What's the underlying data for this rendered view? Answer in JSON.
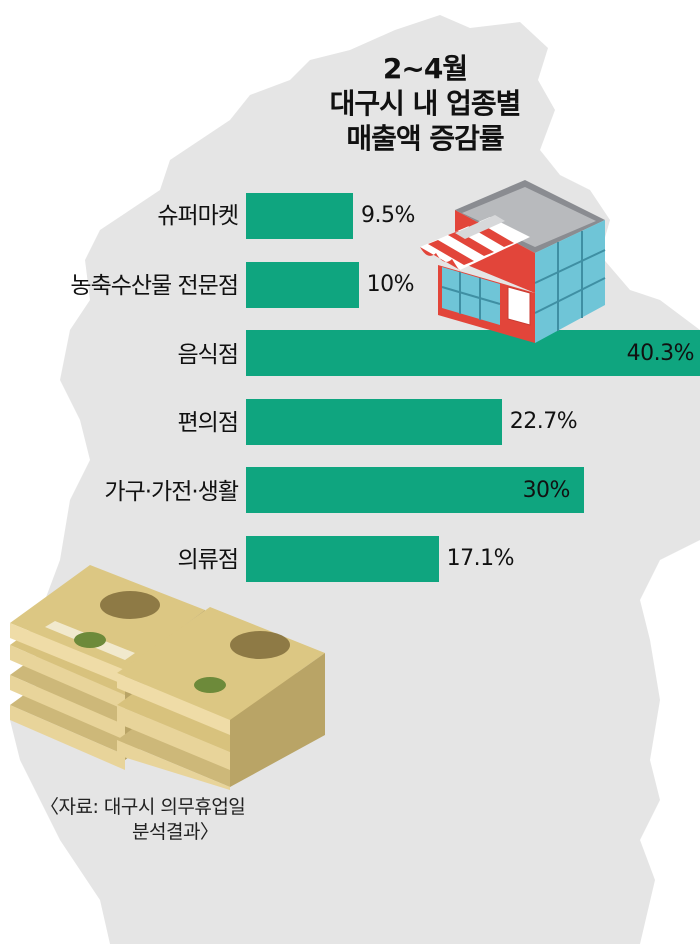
{
  "chart_data": {
    "type": "bar",
    "orientation": "horizontal",
    "title": [
      "2~4월",
      "대구시 내 업종별",
      "매출액 증감률"
    ],
    "categories": [
      "슈퍼마켓",
      "농축수산물 전문점",
      "음식점",
      "편의점",
      "가구·가전·생활",
      "의류점"
    ],
    "values": [
      9.5,
      10,
      40.3,
      22.7,
      30,
      17.1
    ],
    "value_labels": [
      "9.5%",
      "10%",
      "40.3%",
      "22.7%",
      "30%",
      "17.1%"
    ],
    "unit": "%",
    "xlim": [
      0,
      40.3
    ],
    "grid": false,
    "legend": "none",
    "bar_color": "#0fa57f"
  },
  "source": [
    "〈자료: 대구시 의무휴업일",
    "분석결과〉"
  ],
  "colors": {
    "map": "#e5e5e5",
    "bar": "#0fa57f",
    "text": "#111111"
  },
  "icons": [
    "store-building-icon",
    "banknote-stacks-icon"
  ]
}
